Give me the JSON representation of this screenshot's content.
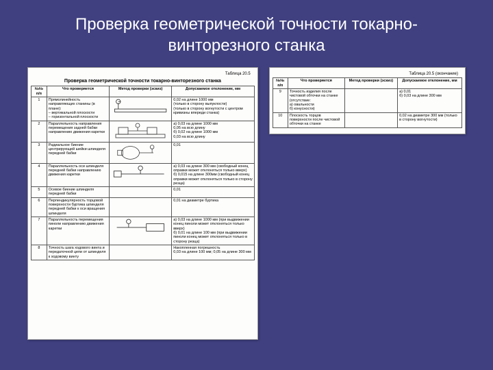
{
  "slide": {
    "title": "Проверка геометрической точности токарно-винторезного станка",
    "background_color": "#404080",
    "title_color": "#ffffff",
    "title_fontsize": 24
  },
  "left_page": {
    "caption": "Таблица 20.5",
    "title": "Проверка геометрической точности токарно-винторезного станка",
    "headers": [
      "№№ п/п",
      "Что проверяется",
      "Метод проверки (эскиз)",
      "Допускаемое отклонение, мм"
    ],
    "rows": [
      {
        "n": "1",
        "check": "Прямолинейность направляющих станины (в плане):\n– вертикальной плоскости\n– горизонтальной плоскости",
        "tolerance": "0,02 на длине 1000 мм\n(только в сторону выпуклости)\n(только в сторону вогнутости с центром кривизны впереди станка)",
        "diagram": "rail"
      },
      {
        "n": "2",
        "check": "Параллельность направления перемещения задней бабки направлению движения каретки",
        "tolerance": "а) 0,03 на длине 1000 мм\n   0,05 на всю длину\nб) 0,02 на длине 1000 мм\n   0,03 на всю длину",
        "diagram": "tailstock"
      },
      {
        "n": "3",
        "check": "Радиальное биение центрирующей шейки шпинделя передней бабки",
        "tolerance": "0,01",
        "diagram": "spindle"
      },
      {
        "n": "4",
        "check": "Параллельность оси шпинделя передней бабки направлению движения каретки",
        "tolerance": "а) 0,03 на длине 300 мм (свободный конец оправки может отклоняться только вверх)\nб) 0,015 на длине 300мм (свободный конец оправки может отклоняться только в сторону резца)",
        "diagram": "mandrel"
      },
      {
        "n": "5",
        "check": "Осевое биение шпинделя передней бабки",
        "tolerance": "0,01",
        "diagram": "none"
      },
      {
        "n": "6",
        "check": "Перпендикулярность торцовой поверхности буртика шпинделя передней бабки к оси вращения шпинделя",
        "tolerance": "0,01 на диаметре буртика",
        "diagram": "none"
      },
      {
        "n": "7",
        "check": "Параллельность перемещения пиноли направлению движения каретки",
        "tolerance": "а) 0,03 на длине 1000 мм (при выдвижении конец пиноли может отклоняться только вверх)\nб) 0,01 на длине 100 мм (при выдвижении пиноли конец может отклоняться только в сторону резца)",
        "diagram": "quill"
      },
      {
        "n": "8",
        "check": "Точность шага ходового винта и передаточной цепи от шпинделя к ходовому винту",
        "tolerance": "Накопленная погрешность\n0,03 на длине 100 мм; 0,05 на длине 300 мм",
        "diagram": "none"
      }
    ]
  },
  "right_page": {
    "caption": "Таблица 20.5 (окончание)",
    "headers": [
      "№№ п/п",
      "Что проверяется",
      "Метод проверки (эскиз)",
      "Допускаемое отклонение, мм"
    ],
    "rows": [
      {
        "n": "9",
        "check": "Точность изделия после чистовой обточки на станке (отсутствие:\nа) овальности\nб) конусности)",
        "tolerance": "а) 0,01\nб) 0,03 на длине 300 мм"
      },
      {
        "n": "10",
        "check": "Плоскость торцов поверхности после чистовой обточки на станке",
        "tolerance": "0,02 на диаметре 300 мм (только в сторону вогнутости)"
      }
    ]
  },
  "style": {
    "paper_color": "#fdfdfc",
    "table_border": "#555555",
    "text_color": "#111111",
    "font_family": "Arial"
  }
}
